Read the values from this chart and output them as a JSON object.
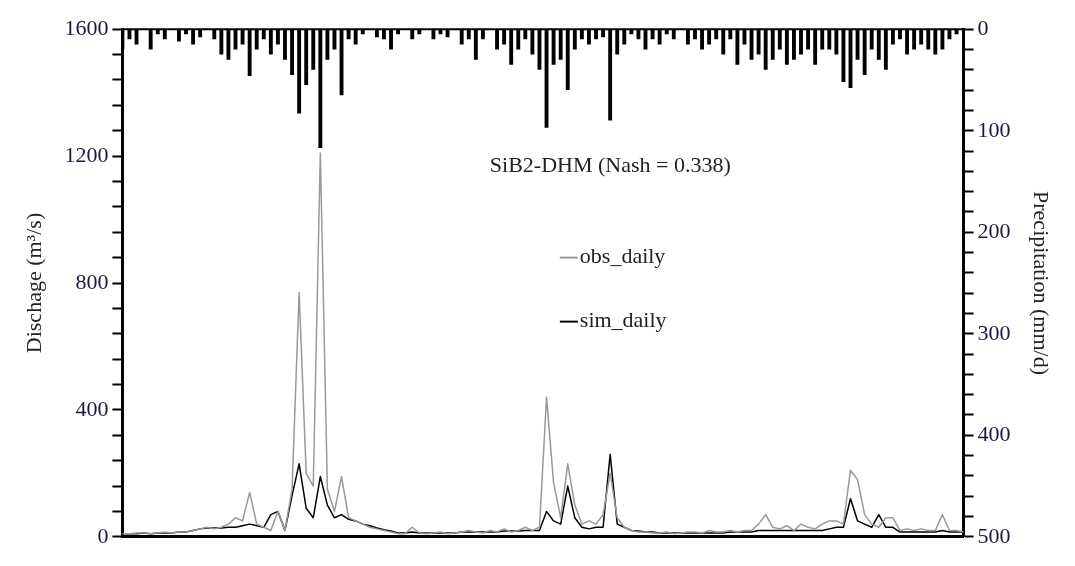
{
  "chart_data": {
    "type": "line",
    "ylabel": "Dischage (m³/s)",
    "y2label": "Precipitation (mm/d)",
    "annotations": [
      "SiB2-DHM (Nash = 0.338)"
    ],
    "categories": [
      null,
      null,
      null,
      null,
      null,
      null,
      null,
      null,
      null,
      null,
      null,
      null,
      null,
      null,
      null,
      null,
      null,
      null,
      null,
      null,
      null,
      null,
      null,
      null,
      null,
      null,
      null,
      null,
      null,
      null,
      null,
      null,
      null,
      null,
      null,
      null,
      null,
      null,
      null,
      null,
      null,
      null,
      null,
      null,
      null,
      null,
      null,
      null,
      null,
      null,
      null,
      null,
      null,
      null,
      null,
      null,
      null,
      null,
      null,
      null,
      null,
      null,
      null,
      null,
      null,
      null,
      null,
      null,
      null,
      null,
      null,
      null,
      null,
      null,
      null,
      null,
      null,
      null,
      null,
      null,
      null,
      null,
      null,
      null,
      null,
      null,
      null,
      null,
      null,
      null,
      null,
      null,
      null,
      null,
      null,
      null,
      null,
      null,
      null,
      null,
      null,
      null,
      null,
      null,
      null,
      null,
      null,
      null,
      null,
      null,
      null,
      null,
      null,
      null,
      null,
      null,
      null,
      null,
      null,
      null
    ],
    "series": [
      {
        "type": "bar",
        "axis": "y2",
        "color": "#000000",
        "values": [
          20,
          10,
          15,
          0,
          20,
          5,
          10,
          0,
          12,
          5,
          15,
          8,
          0,
          10,
          25,
          30,
          20,
          15,
          46,
          20,
          10,
          25,
          15,
          30,
          45,
          83,
          55,
          40,
          117,
          30,
          20,
          65,
          10,
          15,
          5,
          0,
          8,
          10,
          20,
          5,
          0,
          10,
          5,
          0,
          10,
          5,
          8,
          0,
          15,
          10,
          30,
          10,
          0,
          20,
          15,
          35,
          20,
          10,
          25,
          40,
          97,
          35,
          30,
          60,
          20,
          10,
          15,
          10,
          8,
          90,
          25,
          15,
          5,
          10,
          20,
          10,
          15,
          5,
          10,
          0,
          15,
          10,
          20,
          15,
          10,
          25,
          10,
          35,
          15,
          30,
          25,
          40,
          30,
          20,
          35,
          30,
          25,
          20,
          35,
          20,
          20,
          25,
          52,
          58,
          30,
          45,
          20,
          30,
          40,
          15,
          10,
          25,
          20,
          15,
          20,
          25,
          20,
          10,
          5,
          0
        ]
      },
      {
        "name": "obs_daily",
        "color": "#999999",
        "values": [
          10,
          10,
          12,
          12,
          10,
          12,
          15,
          12,
          15,
          15,
          20,
          25,
          30,
          25,
          30,
          40,
          60,
          50,
          140,
          40,
          30,
          20,
          80,
          20,
          150,
          770,
          200,
          160,
          1210,
          150,
          80,
          190,
          60,
          50,
          40,
          30,
          25,
          20,
          15,
          10,
          10,
          30,
          12,
          10,
          12,
          15,
          10,
          12,
          15,
          20,
          15,
          12,
          20,
          15,
          25,
          15,
          20,
          30,
          20,
          30,
          440,
          170,
          60,
          230,
          100,
          40,
          50,
          40,
          70,
          200,
          60,
          30,
          20,
          15,
          15,
          12,
          12,
          15,
          10,
          12,
          15,
          15,
          12,
          20,
          15,
          15,
          20,
          15,
          20,
          20,
          40,
          70,
          30,
          25,
          35,
          20,
          40,
          30,
          25,
          40,
          50,
          50,
          40,
          210,
          180,
          70,
          40,
          30,
          60,
          60,
          20,
          25,
          20,
          25,
          20,
          20,
          70,
          20,
          20,
          15
        ]
      },
      {
        "name": "sim_daily",
        "color": "#000000",
        "values": [
          10,
          10,
          10,
          12,
          10,
          12,
          12,
          12,
          15,
          15,
          20,
          25,
          28,
          28,
          28,
          30,
          30,
          35,
          40,
          35,
          30,
          70,
          80,
          20,
          130,
          230,
          90,
          60,
          190,
          100,
          60,
          70,
          55,
          50,
          40,
          35,
          28,
          22,
          18,
          12,
          12,
          15,
          12,
          12,
          12,
          12,
          12,
          12,
          15,
          15,
          15,
          15,
          15,
          15,
          18,
          18,
          18,
          20,
          20,
          20,
          80,
          50,
          40,
          160,
          60,
          30,
          25,
          30,
          30,
          260,
          40,
          30,
          20,
          18,
          15,
          15,
          12,
          12,
          12,
          12,
          12,
          12,
          12,
          12,
          12,
          12,
          15,
          15,
          15,
          15,
          20,
          20,
          20,
          20,
          20,
          20,
          20,
          20,
          20,
          20,
          25,
          30,
          30,
          120,
          50,
          40,
          30,
          70,
          30,
          30,
          15,
          15,
          15,
          15,
          15,
          15,
          20,
          15,
          15,
          15
        ]
      }
    ],
    "ylim": [
      0,
      1600
    ],
    "yticks": [
      0,
      {
        "value": 80,
        "label": null
      },
      {
        "value": 160,
        "label": null
      },
      {
        "value": 240,
        "label": null
      },
      {
        "value": 320,
        "label": null
      },
      400,
      {
        "value": 480,
        "label": null
      },
      {
        "value": 560,
        "label": null
      },
      {
        "value": 640,
        "label": null
      },
      {
        "value": 720,
        "label": null
      },
      800,
      {
        "value": 880,
        "label": null
      },
      {
        "value": 960,
        "label": null
      },
      {
        "value": 1040,
        "label": null
      },
      {
        "value": 1120,
        "label": null
      },
      1200,
      {
        "value": 1280,
        "label": null
      },
      {
        "value": 1360,
        "label": null
      },
      {
        "value": 1440,
        "label": null
      },
      {
        "value": 1520,
        "label": null
      },
      1600
    ],
    "y2lim": [
      500,
      0
    ],
    "y2ticks": [
      0,
      {
        "value": 20,
        "label": null
      },
      {
        "value": 40,
        "label": null
      },
      {
        "value": 60,
        "label": null
      },
      {
        "value": 80,
        "label": null
      },
      100,
      {
        "value": 120,
        "label": null
      },
      {
        "value": 140,
        "label": null
      },
      {
        "value": 160,
        "label": null
      },
      {
        "value": 180,
        "label": null
      },
      200,
      {
        "value": 220,
        "label": null
      },
      {
        "value": 240,
        "label": null
      },
      {
        "value": 260,
        "label": null
      },
      {
        "value": 280,
        "label": null
      },
      300,
      {
        "value": 320,
        "label": null
      },
      {
        "value": 340,
        "label": null
      },
      {
        "value": 360,
        "label": null
      },
      {
        "value": 380,
        "label": null
      },
      400,
      {
        "value": 420,
        "label": null
      },
      {
        "value": 440,
        "label": null
      },
      {
        "value": 460,
        "label": null
      },
      {
        "value": 480,
        "label": null
      },
      500
    ],
    "legend": "center",
    "grid": false
  }
}
